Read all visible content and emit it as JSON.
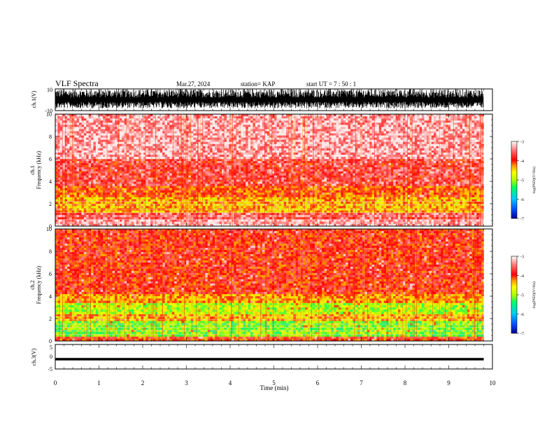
{
  "header": {
    "title": "VLF Spectra",
    "date": "Mar.27, 2024",
    "station": "station= KAP",
    "start": "start  UT =   7 : 50 : 1"
  },
  "colors": {
    "waveform": "#000000",
    "colorbar_stops": [
      "#00009c",
      "#0050ff",
      "#00c8ff",
      "#00ff64",
      "#b4ff00",
      "#ffff00",
      "#ffa000",
      "#ff0000",
      "#ff7070",
      "#ffffff"
    ]
  },
  "chart_data": [
    {
      "type": "line",
      "panel": "ch1-waveform",
      "ylabel": "ch.1(V)",
      "ylim": [
        -10,
        10
      ],
      "y_ticks": [
        "10",
        "-10"
      ],
      "xlim": [
        0,
        10
      ],
      "data_end_min": 9.8,
      "description_of_signal": "dense broadband noise saturating roughly -7 to +10 V"
    },
    {
      "type": "heatmap",
      "panel": "ch1-spectrogram",
      "ylabel": "ch.1\nFrequency (kHz)",
      "ylim": [
        0,
        10
      ],
      "y_ticks": [
        "0",
        "2",
        "4",
        "6",
        "8",
        "10"
      ],
      "xlim": [
        0,
        10
      ],
      "data_end_min": 9.8,
      "bands_khz": [
        {
          "from": 0,
          "to": 0.6,
          "level": -3.3
        },
        {
          "from": 0.6,
          "to": 1.2,
          "level": -3.6
        },
        {
          "from": 1.2,
          "to": 2.6,
          "level": -4.4
        },
        {
          "from": 2.6,
          "to": 3.6,
          "level": -4.1
        },
        {
          "from": 3.6,
          "to": 6,
          "level": -3.7
        },
        {
          "from": 6,
          "to": 10,
          "level": -3.3
        }
      ],
      "colorbar": {
        "min": -7,
        "max": -3,
        "ticks": [
          "-3",
          "-4",
          "-5",
          "-6",
          "-7"
        ],
        "label": "log(PSD)(V²/Hz)"
      }
    },
    {
      "type": "heatmap",
      "panel": "ch2-spectrogram",
      "ylabel": "ch.2\nFrequency (kHz)",
      "ylim": [
        0,
        10
      ],
      "y_ticks": [
        "0",
        "2",
        "4",
        "6",
        "8",
        "10"
      ],
      "xlim": [
        0,
        10
      ],
      "data_end_min": 9.8,
      "bands_khz": [
        {
          "from": 0,
          "to": 0.4,
          "level": -4.0
        },
        {
          "from": 0.4,
          "to": 1.8,
          "level": -5.1
        },
        {
          "from": 1.8,
          "to": 2.4,
          "level": -4.4
        },
        {
          "from": 2.4,
          "to": 3.4,
          "level": -4.9
        },
        {
          "from": 3.4,
          "to": 4.2,
          "level": -4.3
        },
        {
          "from": 4.2,
          "to": 10,
          "level": -3.9
        }
      ],
      "colorbar": {
        "min": -7,
        "max": -3,
        "ticks": [
          "-3",
          "-4",
          "-5",
          "-6",
          "-7"
        ],
        "label": "log(PSD)(V²/Hz)"
      }
    },
    {
      "type": "line",
      "panel": "ch3-waveform",
      "ylabel": "ch.3(V)",
      "ylim": [
        -5,
        5
      ],
      "y_ticks": [
        "5",
        "0",
        "-5"
      ],
      "xlim": [
        0,
        10
      ],
      "data_end_min": 9.8,
      "band_v": [
        -1.5,
        -0.5
      ]
    }
  ],
  "x_axis": {
    "label": "Time (min)",
    "ticks": [
      "0",
      "1",
      "2",
      "3",
      "4",
      "5",
      "6",
      "7",
      "8",
      "9",
      "10"
    ]
  }
}
